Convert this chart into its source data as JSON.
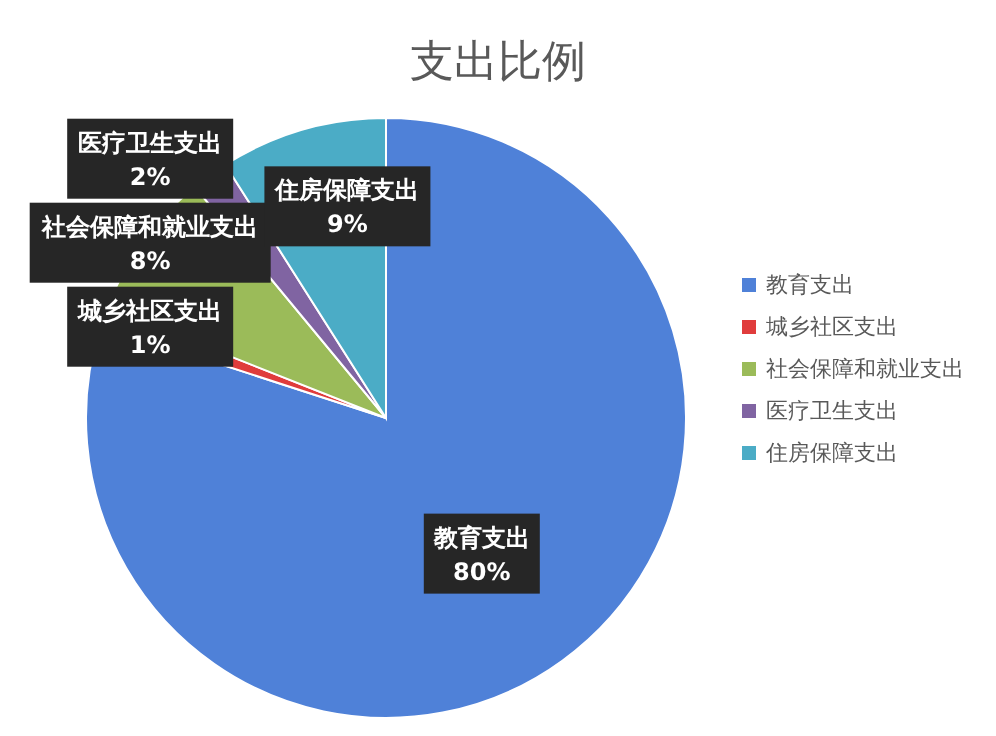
{
  "chart_data": {
    "type": "pie",
    "title": "支出比例",
    "categories": [
      "教育支出",
      "城乡社区支出",
      "社会保障和就业支出",
      "医疗卫生支出",
      "住房保障支出"
    ],
    "values": [
      80,
      1,
      8,
      2,
      9
    ],
    "value_labels": [
      "80%",
      "1%",
      "8%",
      "2%",
      "9%"
    ],
    "colors": [
      "#4f81d8",
      "#e03c3c",
      "#9bbb59",
      "#8064a2",
      "#4bacc6"
    ],
    "legend": "right"
  }
}
